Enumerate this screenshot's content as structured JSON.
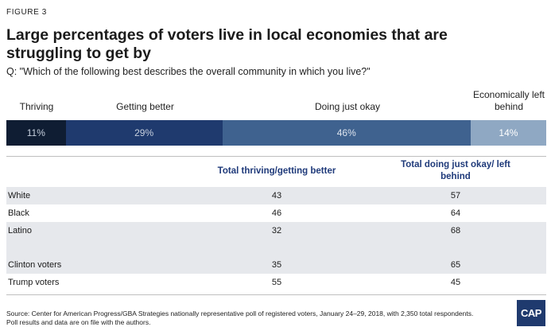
{
  "figure_label": "FIGURE 3",
  "title": "Large percentages of voters live in local economies that are struggling to get by",
  "question": "Q: \"Which of the following best describes the overall community in which you live?\"",
  "chart_data": [
    {
      "type": "bar",
      "orientation": "horizontal-stacked",
      "categories": [
        "Thriving",
        "Getting better",
        "Doing just okay",
        "Economically left behind"
      ],
      "values": [
        11,
        29,
        46,
        14
      ],
      "value_labels": [
        "11%",
        "29%",
        "46%",
        "14%"
      ],
      "colors": [
        "#0f1d33",
        "#1f3a6e",
        "#3f628f",
        "#8fa8c3"
      ],
      "text_colors": [
        "#c7d0de",
        "#c7d0de",
        "#dde4ee",
        "#ffffff"
      ]
    },
    {
      "type": "table",
      "columns": [
        "",
        "Total thriving/getting better",
        "Total doing just okay/ left behind"
      ],
      "rows": [
        {
          "label": "White",
          "a": "43",
          "b": "57"
        },
        {
          "label": "Black",
          "a": "46",
          "b": "64"
        },
        {
          "label": "Latino",
          "a": "32",
          "b": "68"
        },
        {
          "label": "",
          "a": "",
          "b": ""
        },
        {
          "label": "Clinton voters",
          "a": "35",
          "b": "65"
        },
        {
          "label": "Trump voters",
          "a": "55",
          "b": "45"
        }
      ]
    }
  ],
  "source": "Source: Center for American Progress/GBA Strategies nationally representative poll of registered voters, January 24–29, 2018, with 2,350 total respondents. Poll results and data are on file with the authors.",
  "logo_text": "CAP"
}
